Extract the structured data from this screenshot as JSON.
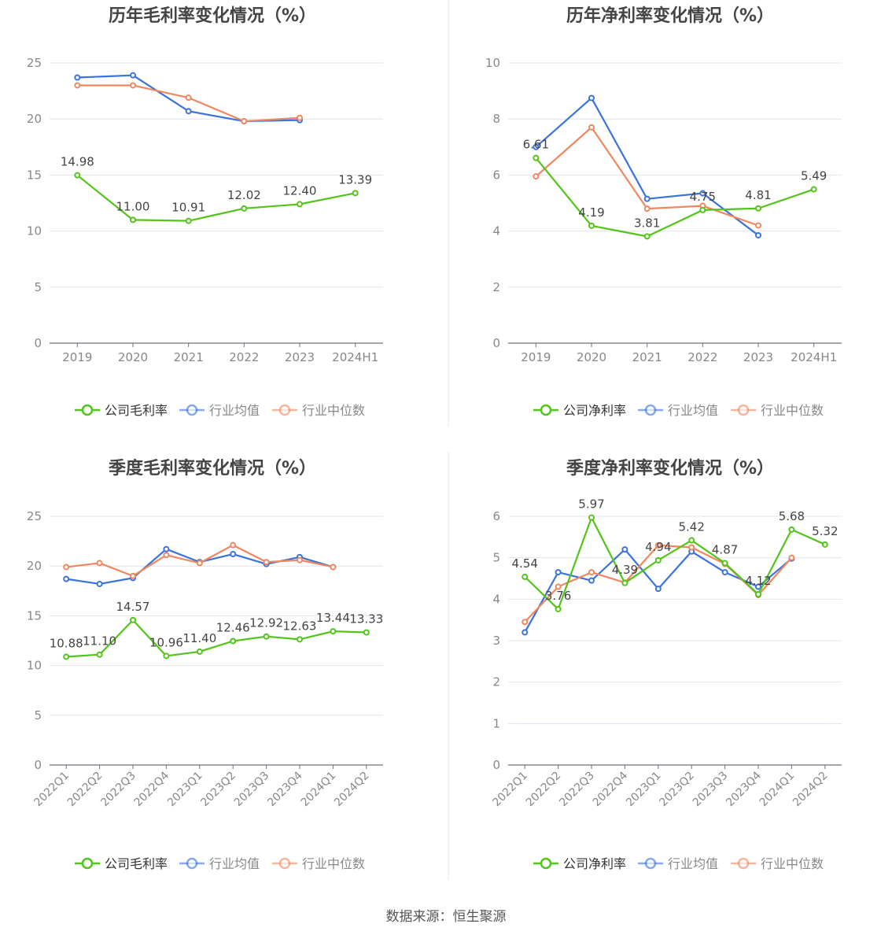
{
  "footer": {
    "source": "数据来源：恒生聚源"
  },
  "colors": {
    "company": "#52c41a",
    "avg": "#3a73db",
    "median": "#f0875f",
    "axis": "#888888",
    "grid": "#e0e4ee"
  },
  "chart_data": [
    {
      "type": "line",
      "title": "历年毛利率变化情况（%）",
      "categories": [
        "2019",
        "2020",
        "2021",
        "2022",
        "2023",
        "2024H1"
      ],
      "ylim": [
        0,
        25
      ],
      "yticks": [
        0,
        5,
        10,
        15,
        20,
        25
      ],
      "grid": true,
      "legend_position": "bottom",
      "series": [
        {
          "name": "公司毛利率",
          "role": "company",
          "values": [
            14.98,
            11.0,
            10.91,
            12.02,
            12.4,
            13.39
          ],
          "labels": [
            "14.98",
            "11.00",
            "10.91",
            "12.02",
            "12.40",
            "13.39"
          ]
        },
        {
          "name": "行业均值",
          "role": "avg",
          "values": [
            23.7,
            23.9,
            20.7,
            19.8,
            19.9,
            null
          ]
        },
        {
          "name": "行业中位数",
          "role": "median",
          "values": [
            23.0,
            23.0,
            21.9,
            19.8,
            20.1,
            null
          ]
        }
      ]
    },
    {
      "type": "line",
      "title": "历年净利率变化情况（%）",
      "categories": [
        "2019",
        "2020",
        "2021",
        "2022",
        "2023",
        "2024H1"
      ],
      "ylim": [
        0,
        10
      ],
      "yticks": [
        0,
        2,
        4,
        6,
        8,
        10
      ],
      "grid": true,
      "legend_position": "bottom",
      "series": [
        {
          "name": "公司净利率",
          "role": "company",
          "values": [
            6.61,
            4.19,
            3.81,
            4.75,
            4.81,
            5.49
          ],
          "labels": [
            "6.61",
            "4.19",
            "3.81",
            "4.75",
            "4.81",
            "5.49"
          ]
        },
        {
          "name": "行业均值",
          "role": "avg",
          "values": [
            7.0,
            8.75,
            5.15,
            5.35,
            3.85,
            null
          ]
        },
        {
          "name": "行业中位数",
          "role": "median",
          "values": [
            5.95,
            7.7,
            4.8,
            4.9,
            4.2,
            null
          ]
        }
      ]
    },
    {
      "type": "line",
      "title": "季度毛利率变化情况（%）",
      "categories": [
        "2022Q1",
        "2022Q2",
        "2022Q3",
        "2022Q4",
        "2023Q1",
        "2023Q2",
        "2023Q3",
        "2023Q4",
        "2024Q1",
        "2024Q2"
      ],
      "ylim": [
        0,
        25
      ],
      "yticks": [
        0,
        5,
        10,
        15,
        20,
        25
      ],
      "grid": true,
      "legend_position": "bottom",
      "series": [
        {
          "name": "公司毛利率",
          "role": "company",
          "values": [
            10.88,
            11.1,
            14.57,
            10.96,
            11.4,
            12.46,
            12.92,
            12.63,
            13.44,
            13.33
          ],
          "labels": [
            "10.88",
            "11.10",
            "14.57",
            "10.96",
            "11.40",
            "12.46",
            "12.92",
            "12.63",
            "13.44",
            "13.33"
          ]
        },
        {
          "name": "行业均值",
          "role": "avg",
          "values": [
            18.7,
            18.2,
            18.8,
            21.7,
            20.4,
            21.2,
            20.2,
            20.9,
            19.9,
            null
          ]
        },
        {
          "name": "行业中位数",
          "role": "median",
          "values": [
            19.9,
            20.3,
            19.0,
            21.1,
            20.3,
            22.1,
            20.4,
            20.6,
            19.9,
            null
          ]
        }
      ]
    },
    {
      "type": "line",
      "title": "季度净利率变化情况（%）",
      "categories": [
        "2022Q1",
        "2022Q2",
        "2022Q3",
        "2022Q4",
        "2023Q1",
        "2023Q2",
        "2023Q3",
        "2023Q4",
        "2024Q1",
        "2024Q2"
      ],
      "ylim": [
        0,
        6
      ],
      "yticks": [
        0,
        1,
        2,
        3,
        4,
        5,
        6
      ],
      "grid": true,
      "legend_position": "bottom",
      "series": [
        {
          "name": "公司净利率",
          "role": "company",
          "values": [
            4.54,
            3.76,
            5.97,
            4.39,
            4.94,
            5.42,
            4.87,
            4.12,
            5.68,
            5.32
          ],
          "labels": [
            "4.54",
            "3.76",
            "5.97",
            "4.39",
            "4.94",
            "5.42",
            "4.87",
            "4.12",
            "5.68",
            "5.32"
          ]
        },
        {
          "name": "行业均值",
          "role": "avg",
          "values": [
            3.2,
            4.65,
            4.45,
            5.2,
            4.25,
            5.15,
            4.65,
            4.3,
            4.98,
            null
          ]
        },
        {
          "name": "行业中位数",
          "role": "median",
          "values": [
            3.45,
            4.3,
            4.65,
            4.4,
            5.3,
            5.25,
            4.85,
            4.1,
            5.0,
            null
          ]
        }
      ]
    }
  ]
}
